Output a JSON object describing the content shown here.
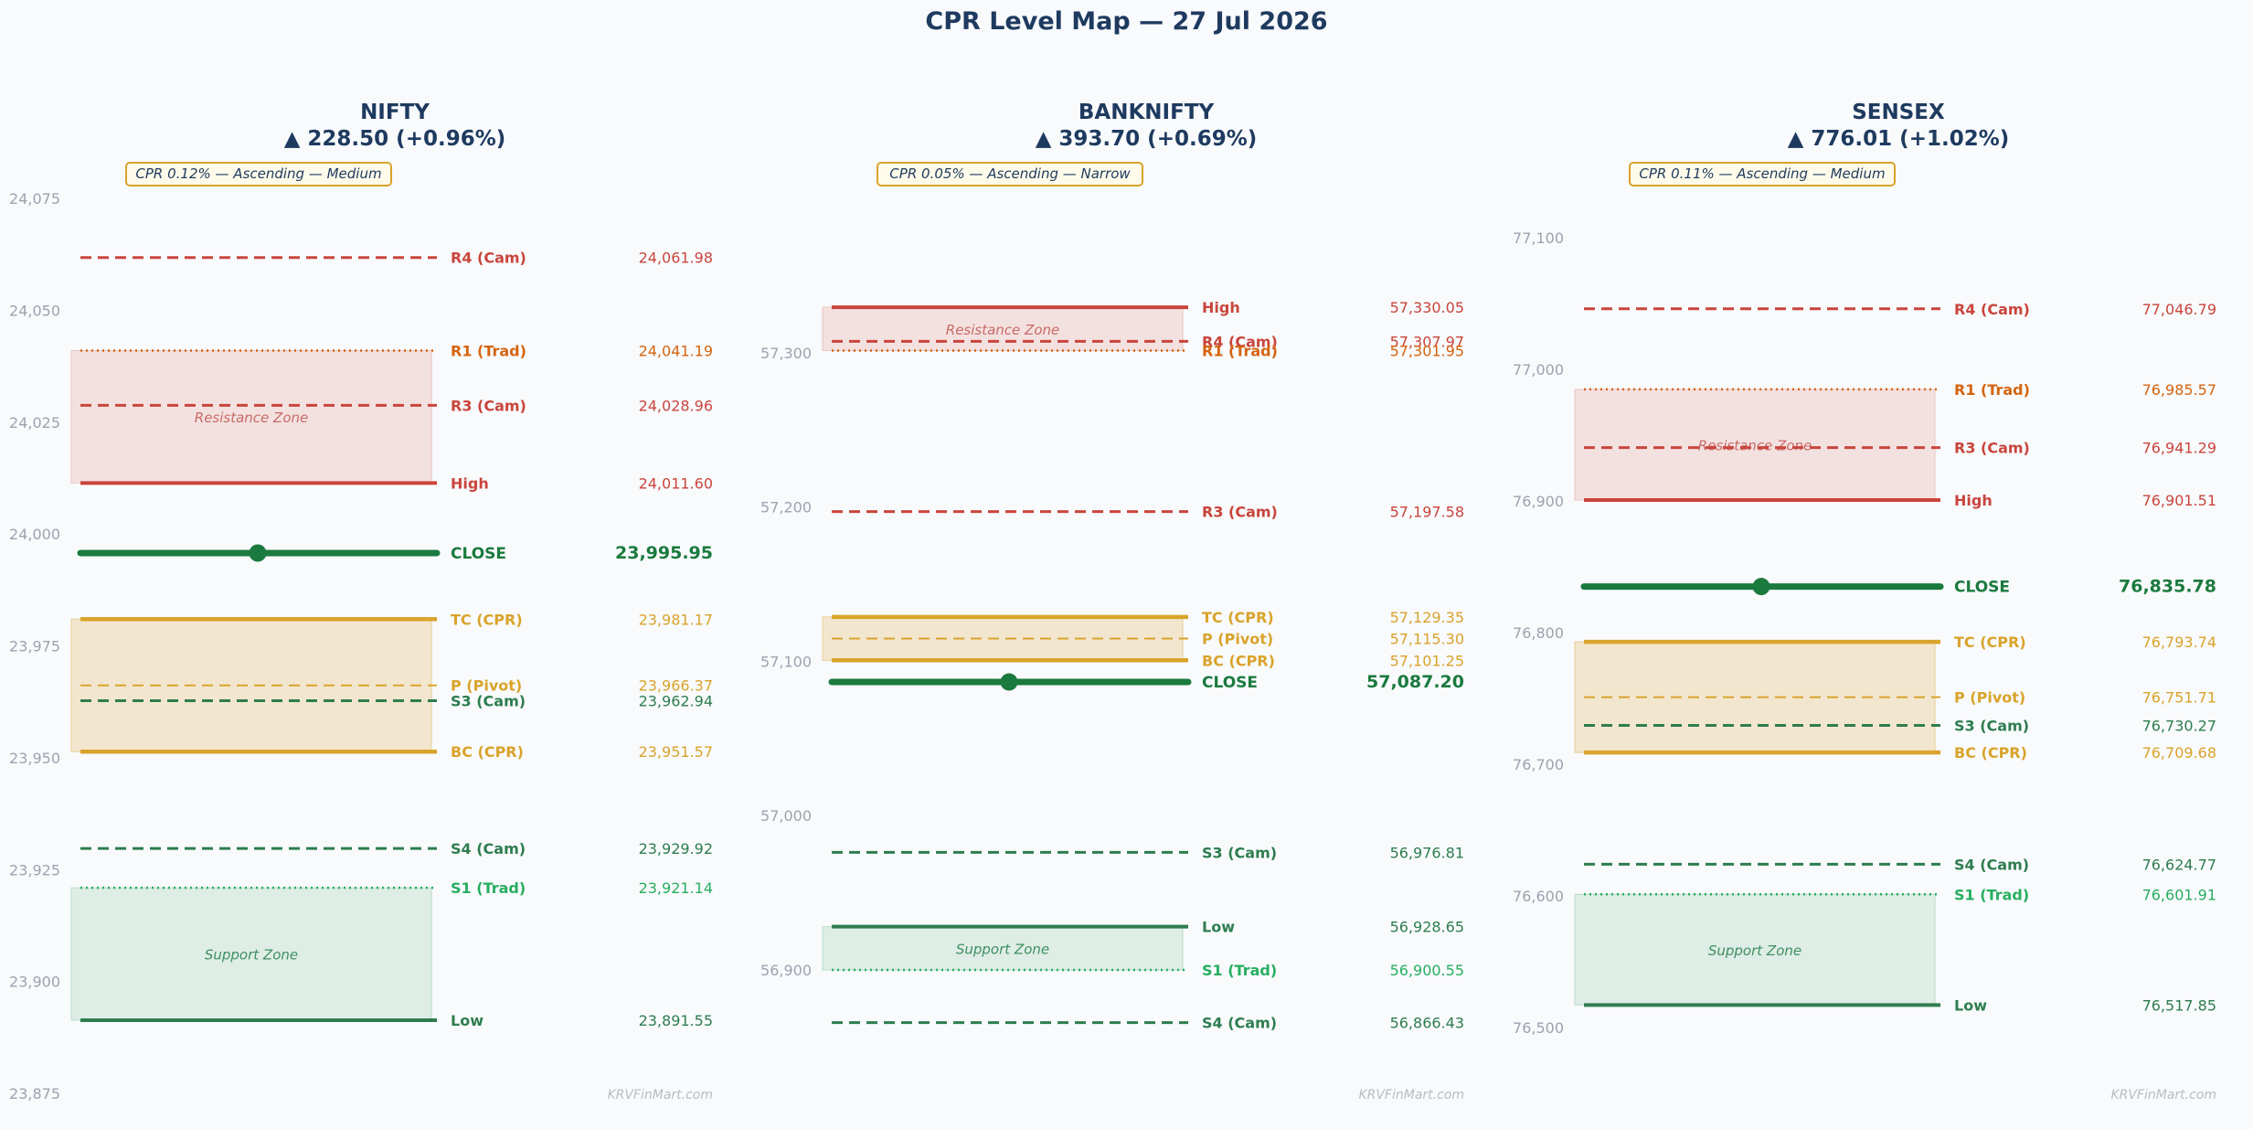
{
  "title": "CPR Level Map — 27 Jul 2026",
  "watermark": "KRVFinMart.com",
  "colors": {
    "resistance": "#c9453c",
    "trad": "#d4640f",
    "cpr": "#d9a32b",
    "support": "#2e7d4f",
    "support_trad": "#27ae60",
    "close": "#1b7a3e",
    "title": "#1e3a5f",
    "tick": "#9ca3af"
  },
  "chart_data": [
    {
      "type": "level-map",
      "name": "NIFTY",
      "change": "▲ 228.50 (+0.96%)",
      "badge": "CPR 0.12% — Ascending — Medium",
      "ylim": [
        23875,
        24075
      ],
      "yticks": [
        23875,
        23900,
        23925,
        23950,
        23975,
        24000,
        24025,
        24050,
        24075
      ],
      "ytick_labels": [
        "23,875",
        "23,900",
        "23,925",
        "23,950",
        "23,975",
        "24,000",
        "24,025",
        "24,050",
        "24,075"
      ],
      "zones": [
        {
          "label": "Resistance Zone",
          "kind": "resistance",
          "from": 24011.6,
          "to": 24041.19
        },
        {
          "label": "",
          "kind": "cpr",
          "from": 23951.57,
          "to": 23981.17
        },
        {
          "label": "Support Zone",
          "kind": "support",
          "from": 23891.55,
          "to": 23921.14
        }
      ],
      "levels": [
        {
          "label": "R4 (Cam)",
          "value": 24061.98,
          "display": "24,061.98",
          "kind": "resistance",
          "style": "dashed"
        },
        {
          "label": "R1 (Trad)",
          "value": 24041.19,
          "display": "24,041.19",
          "kind": "trad",
          "style": "dotted"
        },
        {
          "label": "R3 (Cam)",
          "value": 24028.96,
          "display": "24,028.96",
          "kind": "resistance",
          "style": "dashed"
        },
        {
          "label": "High",
          "value": 24011.6,
          "display": "24,011.60",
          "kind": "resistance",
          "style": "solid"
        },
        {
          "label": "CLOSE",
          "value": 23995.95,
          "display": "23,995.95",
          "kind": "close",
          "style": "close"
        },
        {
          "label": "TC (CPR)",
          "value": 23981.17,
          "display": "23,981.17",
          "kind": "cpr",
          "style": "solid"
        },
        {
          "label": "P (Pivot)",
          "value": 23966.37,
          "display": "23,966.37",
          "kind": "cpr",
          "style": "dashed"
        },
        {
          "label": "S3 (Cam)",
          "value": 23962.94,
          "display": "23,962.94",
          "kind": "support",
          "style": "dashed"
        },
        {
          "label": "BC (CPR)",
          "value": 23951.57,
          "display": "23,951.57",
          "kind": "cpr",
          "style": "solid"
        },
        {
          "label": "S4 (Cam)",
          "value": 23929.92,
          "display": "23,929.92",
          "kind": "support",
          "style": "dashed"
        },
        {
          "label": "S1 (Trad)",
          "value": 23921.14,
          "display": "23,921.14",
          "kind": "support_trad",
          "style": "dotted"
        },
        {
          "label": "Low",
          "value": 23891.55,
          "display": "23,891.55",
          "kind": "support",
          "style": "solid"
        }
      ]
    },
    {
      "type": "level-map",
      "name": "BANKNIFTY",
      "change": "▲ 393.70 (+0.69%)",
      "badge": "CPR 0.05% — Ascending — Narrow",
      "ylim": [
        56820,
        57400
      ],
      "yticks": [
        56900,
        57000,
        57100,
        57200,
        57300
      ],
      "ytick_labels": [
        "56,900",
        "57,000",
        "57,100",
        "57,200",
        "57,300"
      ],
      "zones": [
        {
          "label": "Resistance Zone",
          "kind": "resistance",
          "from": 57301.95,
          "to": 57330.05
        },
        {
          "label": "",
          "kind": "cpr",
          "from": 57101.25,
          "to": 57129.35
        },
        {
          "label": "Support Zone",
          "kind": "support",
          "from": 56900.55,
          "to": 56928.65
        }
      ],
      "levels": [
        {
          "label": "High",
          "value": 57330.05,
          "display": "57,330.05",
          "kind": "resistance",
          "style": "solid"
        },
        {
          "label": "R4 (Cam)",
          "value": 57307.97,
          "display": "57,307.97",
          "kind": "resistance",
          "style": "dashed"
        },
        {
          "label": "R1 (Trad)",
          "value": 57301.95,
          "display": "57,301.95",
          "kind": "trad",
          "style": "dotted"
        },
        {
          "label": "R3 (Cam)",
          "value": 57197.58,
          "display": "57,197.58",
          "kind": "resistance",
          "style": "dashed"
        },
        {
          "label": "TC (CPR)",
          "value": 57129.35,
          "display": "57,129.35",
          "kind": "cpr",
          "style": "solid"
        },
        {
          "label": "P (Pivot)",
          "value": 57115.3,
          "display": "57,115.30",
          "kind": "cpr",
          "style": "dashed"
        },
        {
          "label": "BC (CPR)",
          "value": 57101.25,
          "display": "57,101.25",
          "kind": "cpr",
          "style": "solid"
        },
        {
          "label": "CLOSE",
          "value": 57087.2,
          "display": "57,087.20",
          "kind": "close",
          "style": "close"
        },
        {
          "label": "S3 (Cam)",
          "value": 56976.81,
          "display": "56,976.81",
          "kind": "support",
          "style": "dashed"
        },
        {
          "label": "Low",
          "value": 56928.65,
          "display": "56,928.65",
          "kind": "support",
          "style": "solid"
        },
        {
          "label": "S1 (Trad)",
          "value": 56900.55,
          "display": "56,900.55",
          "kind": "support_trad",
          "style": "dotted"
        },
        {
          "label": "S4 (Cam)",
          "value": 56866.43,
          "display": "56,866.43",
          "kind": "support",
          "style": "dashed"
        }
      ]
    },
    {
      "type": "level-map",
      "name": "SENSEX",
      "change": "▲ 776.01 (+1.02%)",
      "badge": "CPR 0.11% — Ascending — Medium",
      "ylim": [
        76450,
        77130
      ],
      "yticks": [
        76500,
        76600,
        76700,
        76800,
        76900,
        77000,
        77100
      ],
      "ytick_labels": [
        "76,500",
        "76,600",
        "76,700",
        "76,800",
        "76,900",
        "77,000",
        "77,100"
      ],
      "zones": [
        {
          "label": "Resistance Zone",
          "kind": "resistance",
          "from": 76901.51,
          "to": 76985.57
        },
        {
          "label": "",
          "kind": "cpr",
          "from": 76709.68,
          "to": 76793.74
        },
        {
          "label": "Support Zone",
          "kind": "support",
          "from": 76517.85,
          "to": 76601.91
        }
      ],
      "levels": [
        {
          "label": "R4 (Cam)",
          "value": 77046.79,
          "display": "77,046.79",
          "kind": "resistance",
          "style": "dashed"
        },
        {
          "label": "R1 (Trad)",
          "value": 76985.57,
          "display": "76,985.57",
          "kind": "trad",
          "style": "dotted"
        },
        {
          "label": "R3 (Cam)",
          "value": 76941.29,
          "display": "76,941.29",
          "kind": "resistance",
          "style": "dashed"
        },
        {
          "label": "High",
          "value": 76901.51,
          "display": "76,901.51",
          "kind": "resistance",
          "style": "solid"
        },
        {
          "label": "CLOSE",
          "value": 76835.78,
          "display": "76,835.78",
          "kind": "close",
          "style": "close"
        },
        {
          "label": "TC (CPR)",
          "value": 76793.74,
          "display": "76,793.74",
          "kind": "cpr",
          "style": "solid"
        },
        {
          "label": "P (Pivot)",
          "value": 76751.71,
          "display": "76,751.71",
          "kind": "cpr",
          "style": "dashed"
        },
        {
          "label": "S3 (Cam)",
          "value": 76730.27,
          "display": "76,730.27",
          "kind": "support",
          "style": "dashed"
        },
        {
          "label": "BC (CPR)",
          "value": 76709.68,
          "display": "76,709.68",
          "kind": "cpr",
          "style": "solid"
        },
        {
          "label": "S4 (Cam)",
          "value": 76624.77,
          "display": "76,624.77",
          "kind": "support",
          "style": "dashed"
        },
        {
          "label": "S1 (Trad)",
          "value": 76601.91,
          "display": "76,601.91",
          "kind": "support_trad",
          "style": "dotted"
        },
        {
          "label": "Low",
          "value": 76517.85,
          "display": "76,517.85",
          "kind": "support",
          "style": "solid"
        }
      ]
    }
  ]
}
